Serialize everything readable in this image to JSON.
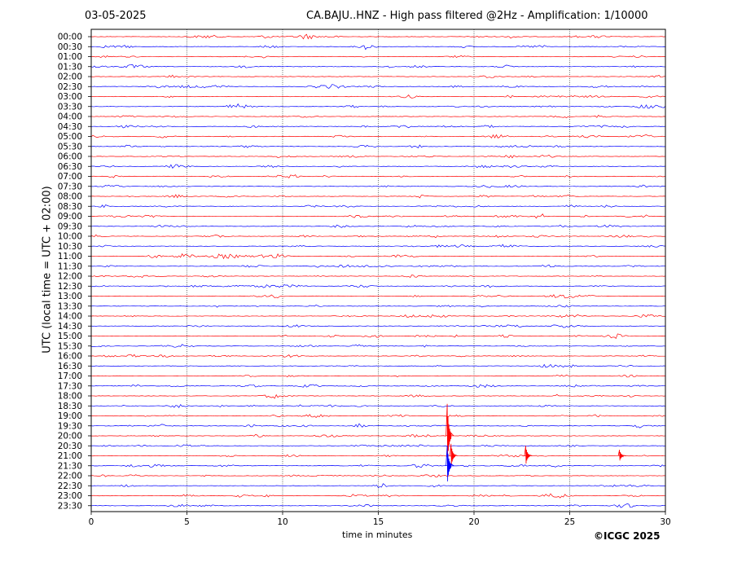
{
  "chart_data": {
    "type": "line",
    "date": "03-05-2025",
    "title": "CA.BAJU..HNZ - High pass filtered @2Hz - Amplification: 1/10000",
    "xlabel": "time in minutes",
    "ylabel": "UTC (local time = UTC + 02:00)",
    "copyright": "©ICGC 2025",
    "xlim": [
      0,
      30
    ],
    "x_ticks": [
      "0",
      "5",
      "10",
      "15",
      "20",
      "25",
      "30"
    ],
    "row_labels": [
      "00:00",
      "00:30",
      "01:00",
      "01:30",
      "02:00",
      "02:30",
      "03:00",
      "03:30",
      "04:00",
      "04:30",
      "05:00",
      "05:30",
      "06:00",
      "06:30",
      "07:00",
      "07:30",
      "08:00",
      "08:30",
      "09:00",
      "09:30",
      "10:00",
      "10:30",
      "11:00",
      "11:30",
      "12:00",
      "12:30",
      "13:00",
      "13:30",
      "14:00",
      "14:30",
      "15:00",
      "15:30",
      "16:00",
      "16:30",
      "17:00",
      "17:30",
      "18:00",
      "18:30",
      "19:00",
      "19:30",
      "20:00",
      "20:30",
      "21:00",
      "21:30",
      "22:00",
      "22:30",
      "23:00",
      "23:30"
    ],
    "series_colors": [
      "#ff0000",
      "#0000ff"
    ],
    "vertical_grid": true,
    "events": [
      {
        "row": 40,
        "minute": 18.6,
        "amplitude": 3.2
      },
      {
        "row": 42,
        "minute": 18.8,
        "amplitude": 1.2
      },
      {
        "row": 42,
        "minute": 22.7,
        "amplitude": 1.0
      },
      {
        "row": 42,
        "minute": 27.6,
        "amplitude": 0.6
      },
      {
        "row": 43,
        "minute": 18.6,
        "amplitude": 2.0
      }
    ]
  }
}
